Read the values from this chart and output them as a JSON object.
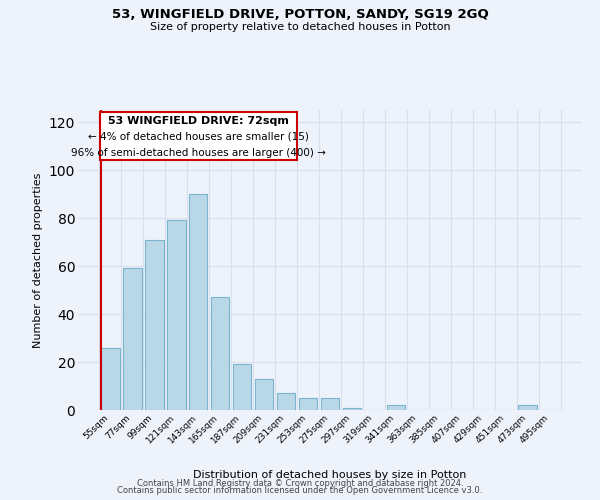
{
  "title": "53, WINGFIELD DRIVE, POTTON, SANDY, SG19 2GQ",
  "subtitle": "Size of property relative to detached houses in Potton",
  "xlabel": "Distribution of detached houses by size in Potton",
  "ylabel": "Number of detached properties",
  "bar_labels": [
    "55sqm",
    "77sqm",
    "99sqm",
    "121sqm",
    "143sqm",
    "165sqm",
    "187sqm",
    "209sqm",
    "231sqm",
    "253sqm",
    "275sqm",
    "297sqm",
    "319sqm",
    "341sqm",
    "363sqm",
    "385sqm",
    "407sqm",
    "429sqm",
    "451sqm",
    "473sqm",
    "495sqm"
  ],
  "bar_values": [
    26,
    59,
    71,
    79,
    90,
    47,
    19,
    13,
    7,
    5,
    5,
    1,
    0,
    2,
    0,
    0,
    0,
    0,
    0,
    2,
    0
  ],
  "bar_color": "#b8d8e8",
  "bar_edge_color": "#7ab4cc",
  "highlight_color": "#cc0000",
  "ylim": [
    0,
    125
  ],
  "yticks": [
    0,
    20,
    40,
    60,
    80,
    100,
    120
  ],
  "annotation_title": "53 WINGFIELD DRIVE: 72sqm",
  "annotation_line1": "← 4% of detached houses are smaller (15)",
  "annotation_line2": "96% of semi-detached houses are larger (400) →",
  "annotation_box_color": "#ffffff",
  "annotation_box_edge": "#cc0000",
  "footer_line1": "Contains HM Land Registry data © Crown copyright and database right 2024.",
  "footer_line2": "Contains public sector information licensed under the Open Government Licence v3.0.",
  "bg_color": "#eef2fa",
  "grid_color": "#d8e0f0"
}
